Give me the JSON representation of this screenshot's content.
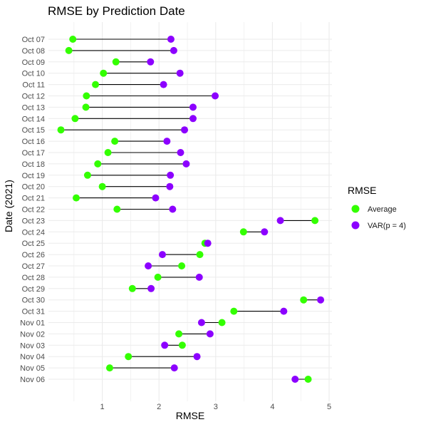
{
  "chart_data": {
    "type": "dumbbell",
    "title": "RMSE by Prediction Date",
    "xlabel": "RMSE",
    "ylabel": "Date (2021)",
    "xlim": [
      0.05,
      5.05
    ],
    "x_ticks": [
      1,
      2,
      3,
      4,
      5
    ],
    "grid": true,
    "legend": {
      "title": "RMSE",
      "position": "right",
      "entries": [
        {
          "name": "Average",
          "color": "#33ff00"
        },
        {
          "name": "VAR(p = 4)",
          "color": "#8c00ff"
        }
      ]
    },
    "categories": [
      "Oct 07",
      "Oct 08",
      "Oct 09",
      "Oct 10",
      "Oct 11",
      "Oct 12",
      "Oct 13",
      "Oct 14",
      "Oct 15",
      "Oct 16",
      "Oct 17",
      "Oct 18",
      "Oct 19",
      "Oct 20",
      "Oct 21",
      "Oct 22",
      "Oct 23",
      "Oct 24",
      "Oct 25",
      "Oct 26",
      "Oct 27",
      "Oct 28",
      "Oct 29",
      "Oct 30",
      "Oct 31",
      "Nov 01",
      "Nov 02",
      "Nov 03",
      "Nov 04",
      "Nov 05",
      "Nov 06"
    ],
    "series": [
      {
        "name": "Average",
        "color": "#33ff00",
        "values": [
          0.48,
          0.41,
          1.24,
          1.02,
          0.88,
          0.72,
          0.71,
          0.52,
          0.27,
          1.22,
          1.1,
          0.92,
          0.74,
          1.0,
          0.54,
          1.26,
          4.75,
          3.49,
          2.81,
          2.72,
          2.4,
          1.98,
          1.53,
          4.55,
          3.32,
          3.11,
          2.35,
          2.41,
          1.46,
          1.13,
          4.63
        ]
      },
      {
        "name": "VAR(p = 4)",
        "color": "#8c00ff",
        "values": [
          2.21,
          2.26,
          1.85,
          2.37,
          2.08,
          2.99,
          2.6,
          2.6,
          2.45,
          2.14,
          2.38,
          2.48,
          2.2,
          2.19,
          1.94,
          2.24,
          4.14,
          3.86,
          2.86,
          2.06,
          1.81,
          2.71,
          1.86,
          4.85,
          4.2,
          2.75,
          2.9,
          2.1,
          2.67,
          2.27,
          4.4
        ]
      }
    ]
  }
}
